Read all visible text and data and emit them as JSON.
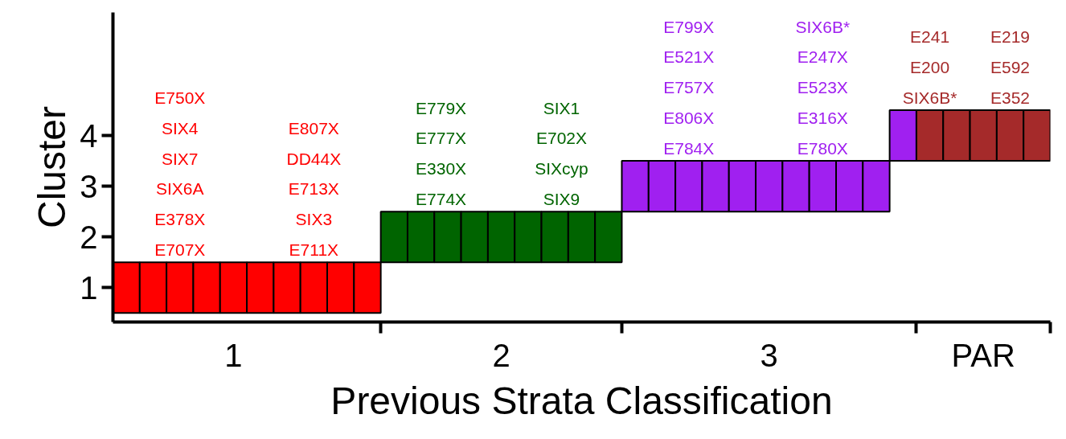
{
  "chart_data": {
    "type": "bar",
    "xlabel": "Previous Strata Classification",
    "ylabel": "Cluster",
    "categories": [
      null,
      null,
      null,
      null,
      "1",
      null,
      null,
      null,
      null,
      null,
      null,
      null,
      null,
      null,
      "2",
      null,
      null,
      null,
      null,
      null,
      null,
      null,
      null,
      null,
      "3",
      null,
      null,
      null,
      null,
      null,
      null,
      null,
      "PAR",
      null,
      null
    ],
    "values": [
      1,
      1,
      1,
      1,
      1,
      1,
      1,
      1,
      1,
      1,
      1,
      1,
      1,
      1,
      1,
      1,
      1,
      1,
      1,
      1,
      1,
      1,
      1,
      1,
      1,
      1,
      1,
      1,
      1,
      1,
      1,
      1,
      1,
      1,
      1
    ],
    "base": [
      0.5,
      0.5,
      0.5,
      0.5,
      0.5,
      0.5,
      0.5,
      0.5,
      0.5,
      0.5,
      1.5,
      1.5,
      1.5,
      1.5,
      1.5,
      1.5,
      1.5,
      1.5,
      1.5,
      2.5,
      2.5,
      2.5,
      2.5,
      2.5,
      2.5,
      2.5,
      2.5,
      2.5,
      2.5,
      3.5,
      3.5,
      3.5,
      3.5,
      3.5,
      3.5
    ],
    "colors": [
      "#ff0000",
      "#ff0000",
      "#ff0000",
      "#ff0000",
      "#ff0000",
      "#ff0000",
      "#ff0000",
      "#ff0000",
      "#ff0000",
      "#ff0000",
      "#006400",
      "#006400",
      "#006400",
      "#006400",
      "#006400",
      "#006400",
      "#006400",
      "#006400",
      "#006400",
      "#a020f0",
      "#a020f0",
      "#a020f0",
      "#a020f0",
      "#a020f0",
      "#a020f0",
      "#a020f0",
      "#a020f0",
      "#a020f0",
      "#a020f0",
      "#a020f0",
      "#a52a2a",
      "#a52a2a",
      "#a52a2a",
      "#a52a2a",
      "#a52a2a"
    ],
    "ylim": [
      0.32,
      6.43
    ],
    "yticks": [
      1,
      2,
      3,
      4
    ],
    "grid": false,
    "annotations": [
      "E750X\nSIX4\nSIX7\nSIX6A\nE378X\nE707X",
      "E807X\nDD44X\nE713X\nSIX3\nE711X",
      "E779X\nE777X\nE330X\nE774X",
      "SIX1\nE702X\nSIXcyp\nSIX9",
      "E799X\nE521X\nE757X\nE806X\nE784X",
      "SIX6B*\nE247X\nE523X\nE316X\nE780X",
      "E241\nE200\nSIX6B*",
      "E219\nE592\nE352"
    ]
  }
}
